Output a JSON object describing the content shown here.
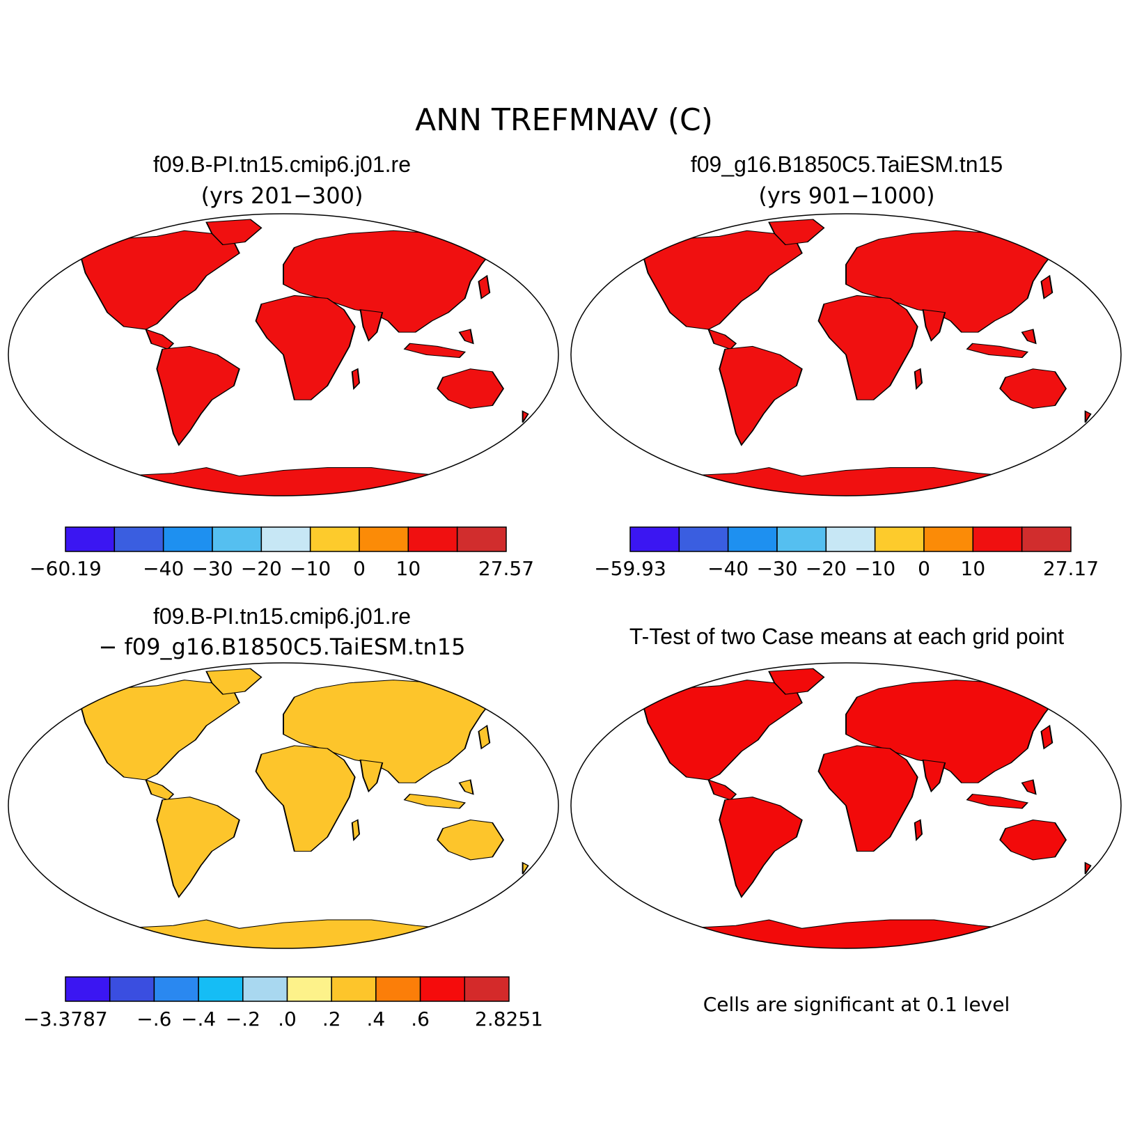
{
  "figure": {
    "title": "ANN TREFMNAV (C)"
  },
  "panels": [
    {
      "id": "case1",
      "case_name": "f09.B-PI.tn15.cmip6.j01.re",
      "years": "(yrs 201−300)",
      "colorbar": {
        "colors": [
          "#3b16f2",
          "#3a5ee0",
          "#1e90f0",
          "#55bff0",
          "#c7e7f5",
          "#fdcb2c",
          "#fb8b07",
          "#f01010",
          "#d12d2d"
        ],
        "tick_labels": [
          "−60.19",
          "−40",
          "−30",
          "−20",
          "−10",
          "0",
          "10",
          "27.57"
        ],
        "tick_index": [
          0,
          2,
          3,
          4,
          5,
          6,
          7,
          9
        ]
      },
      "map": {
        "style": "abs"
      }
    },
    {
      "id": "case2",
      "case_name": "f09_g16.B1850C5.TaiESM.tn15",
      "years": "(yrs 901−1000)",
      "colorbar": {
        "colors": [
          "#3b16f2",
          "#3a5ee0",
          "#1e90f0",
          "#55bff0",
          "#c7e7f5",
          "#fdcb2c",
          "#fb8b07",
          "#f01010",
          "#d12d2d"
        ],
        "tick_labels": [
          "−59.93",
          "−40",
          "−30",
          "−20",
          "−10",
          "0",
          "10",
          "27.17"
        ],
        "tick_index": [
          0,
          2,
          3,
          4,
          5,
          6,
          7,
          9
        ]
      },
      "map": {
        "style": "abs"
      }
    },
    {
      "id": "diff",
      "case_name": "f09.B-PI.tn15.cmip6.j01.re",
      "years": "− f09_g16.B1850C5.TaiESM.tn15",
      "colorbar": {
        "colors": [
          "#3b16f2",
          "#3a4ee0",
          "#2a88f0",
          "#15bdf5",
          "#a9d8f0",
          "#fdf28a",
          "#fdc52b",
          "#fb7e09",
          "#f50c0c",
          "#d42a2a"
        ],
        "tick_labels": [
          "−3.3787",
          "−.6",
          "−.4",
          "−.2",
          ".0",
          ".2",
          ".4",
          ".6",
          "2.8251"
        ],
        "tick_index": [
          0,
          2,
          3,
          4,
          5,
          6,
          7,
          8,
          10
        ]
      },
      "map": {
        "style": "diff"
      }
    },
    {
      "id": "ttest",
      "case_name": "T-Test of two Case means at each grid point",
      "note": "Cells are significant at 0.1 level",
      "map": {
        "style": "sig",
        "color": "#f20a0a"
      }
    }
  ]
}
